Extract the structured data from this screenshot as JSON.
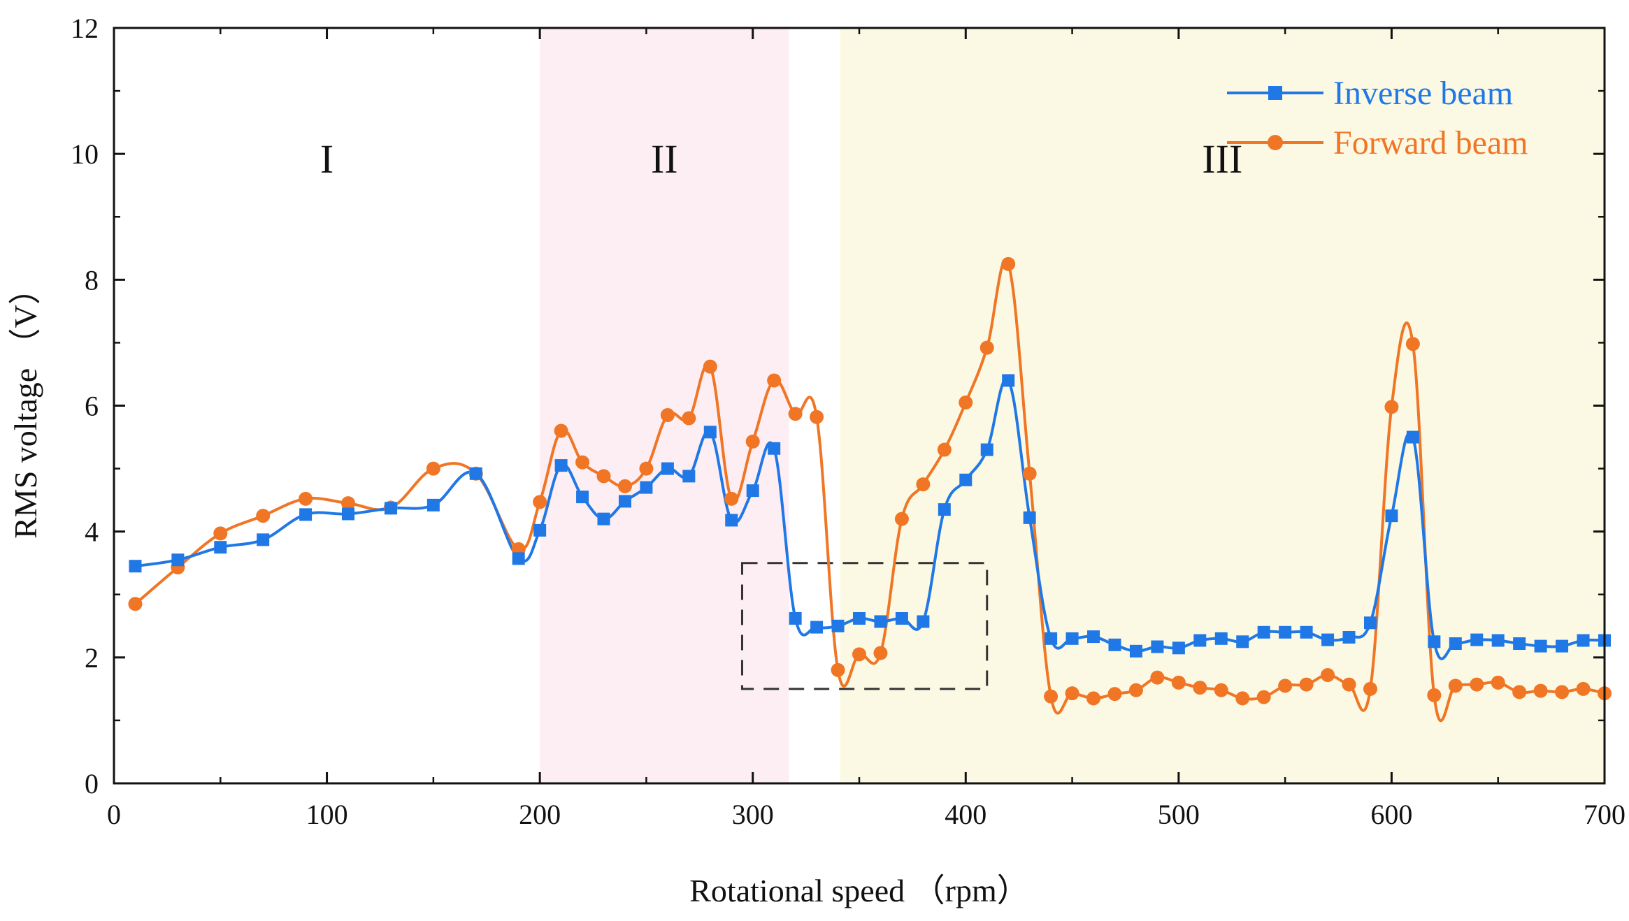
{
  "chart_data": {
    "type": "line",
    "title": "",
    "xlabel": "Rotational speed （rpm）",
    "ylabel": "RMS voltage （V）",
    "xlim": [
      0,
      700
    ],
    "ylim": [
      0,
      12
    ],
    "x_ticks": [
      0,
      100,
      200,
      300,
      400,
      500,
      600,
      700
    ],
    "y_ticks": [
      0,
      2,
      4,
      6,
      8,
      10,
      12
    ],
    "grid": false,
    "legend_position": "top-right",
    "regions": [
      {
        "label": "I",
        "x_start": 0,
        "x_end": 200,
        "color": "#ffffff"
      },
      {
        "label": "II",
        "x_start": 200,
        "x_end": 317,
        "color": "#fdeef4"
      },
      {
        "label": "III",
        "x_start": 341,
        "x_end": 700,
        "color": "#fbf9e4"
      }
    ],
    "highlight_box": {
      "x_start": 295,
      "x_end": 410,
      "y_start": 1.5,
      "y_end": 3.5,
      "style": "dashed"
    },
    "series": [
      {
        "name": "Inverse beam",
        "color": "#1f78e6",
        "marker": "square",
        "x": [
          10,
          30,
          50,
          70,
          90,
          110,
          130,
          150,
          170,
          190,
          200,
          210,
          220,
          230,
          240,
          250,
          260,
          270,
          280,
          290,
          300,
          310,
          320,
          330,
          340,
          350,
          360,
          370,
          380,
          390,
          400,
          410,
          420,
          430,
          440,
          450,
          460,
          470,
          480,
          490,
          500,
          510,
          520,
          530,
          540,
          550,
          560,
          570,
          580,
          590,
          600,
          610,
          620,
          630,
          640,
          650,
          660,
          670,
          680,
          690,
          700
        ],
        "y": [
          3.45,
          3.55,
          3.75,
          3.87,
          4.27,
          4.28,
          4.37,
          4.42,
          4.92,
          3.57,
          4.02,
          5.05,
          4.55,
          4.2,
          4.48,
          4.7,
          5.0,
          4.88,
          5.58,
          4.18,
          4.65,
          5.32,
          2.62,
          2.48,
          2.5,
          2.62,
          2.57,
          2.62,
          2.57,
          4.35,
          4.82,
          5.3,
          6.4,
          4.22,
          2.3,
          2.3,
          2.33,
          2.2,
          2.1,
          2.17,
          2.15,
          2.27,
          2.3,
          2.25,
          2.4,
          2.4,
          2.4,
          2.28,
          2.32,
          2.55,
          4.25,
          5.5,
          2.25,
          2.22,
          2.28,
          2.27,
          2.22,
          2.18,
          2.18,
          2.27,
          2.27
        ]
      },
      {
        "name": "Forward beam",
        "color": "#f07524",
        "marker": "circle",
        "x": [
          10,
          30,
          50,
          70,
          90,
          110,
          130,
          150,
          170,
          190,
          200,
          210,
          220,
          230,
          240,
          250,
          260,
          270,
          280,
          290,
          300,
          310,
          320,
          330,
          340,
          350,
          360,
          370,
          380,
          390,
          400,
          410,
          420,
          430,
          440,
          450,
          460,
          470,
          480,
          490,
          500,
          510,
          520,
          530,
          540,
          550,
          560,
          570,
          580,
          590,
          600,
          610,
          620,
          630,
          640,
          650,
          660,
          670,
          680,
          690,
          700
        ],
        "y": [
          2.85,
          3.43,
          3.97,
          4.25,
          4.52,
          4.45,
          4.38,
          5.0,
          4.92,
          3.72,
          4.47,
          5.6,
          5.1,
          4.88,
          4.72,
          5.0,
          5.85,
          5.8,
          6.62,
          4.52,
          5.43,
          6.4,
          5.87,
          5.82,
          1.8,
          2.05,
          2.07,
          4.2,
          4.75,
          5.3,
          6.05,
          6.92,
          8.25,
          4.92,
          1.38,
          1.43,
          1.35,
          1.42,
          1.48,
          1.68,
          1.6,
          1.52,
          1.48,
          1.35,
          1.37,
          1.55,
          1.57,
          1.72,
          1.57,
          1.5,
          5.98,
          6.98,
          1.4,
          1.55,
          1.57,
          1.6,
          1.45,
          1.47,
          1.45,
          1.5,
          1.43
        ]
      }
    ]
  }
}
